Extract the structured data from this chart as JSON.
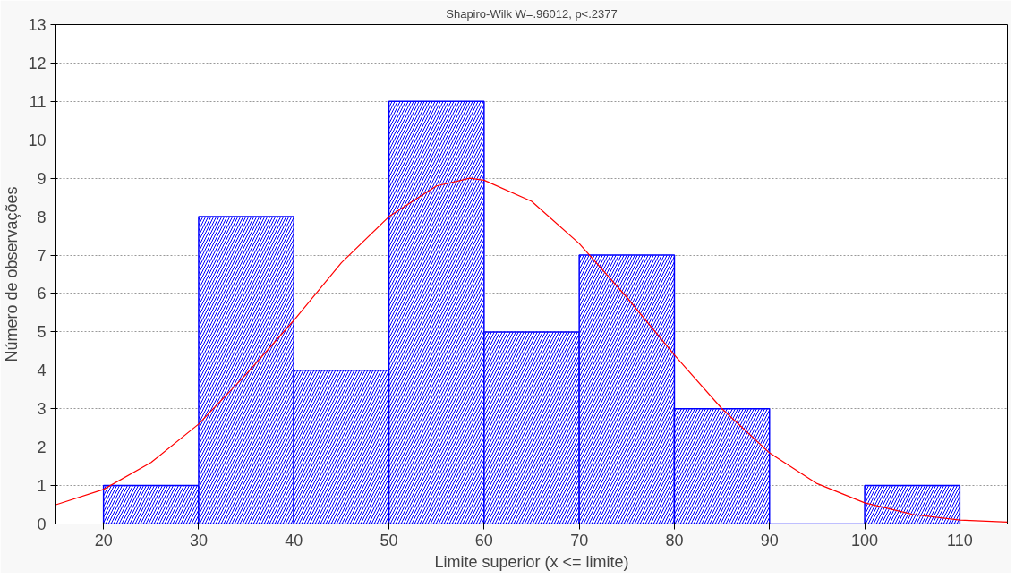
{
  "chart_data": {
    "type": "histogram",
    "title": "Shapiro-Wilk W=.96012, p<.2377",
    "xlabel": "Limite superior (x <= limite)",
    "ylabel": "Número de observações",
    "bins": [
      20,
      30,
      40,
      50,
      60,
      70,
      80,
      90,
      100,
      110
    ],
    "values": [
      1,
      8,
      4,
      11,
      5,
      7,
      3,
      0,
      1
    ],
    "color": "#0000ff",
    "series": [
      {
        "type": "line",
        "color": "#ff0000",
        "x": [
          15,
          20,
          25,
          30,
          35,
          40,
          45,
          50,
          55,
          58.5,
          60,
          65,
          70,
          75,
          80,
          85,
          90,
          95,
          100,
          105,
          110,
          115
        ],
        "values": [
          0.5,
          0.9,
          1.6,
          2.6,
          3.9,
          5.3,
          6.8,
          8.0,
          8.8,
          9.0,
          8.95,
          8.4,
          7.3,
          5.9,
          4.4,
          3.0,
          1.85,
          1.05,
          0.55,
          0.25,
          0.1,
          0.05
        ]
      }
    ],
    "xlim": [
      15,
      115
    ],
    "ylim": [
      0,
      13
    ],
    "xticks": [
      20,
      30,
      40,
      50,
      60,
      70,
      80,
      90,
      100,
      110
    ],
    "yticks": [
      0,
      1,
      2,
      3,
      4,
      5,
      6,
      7,
      8,
      9,
      10,
      11,
      12,
      13
    ],
    "grid": "y"
  }
}
